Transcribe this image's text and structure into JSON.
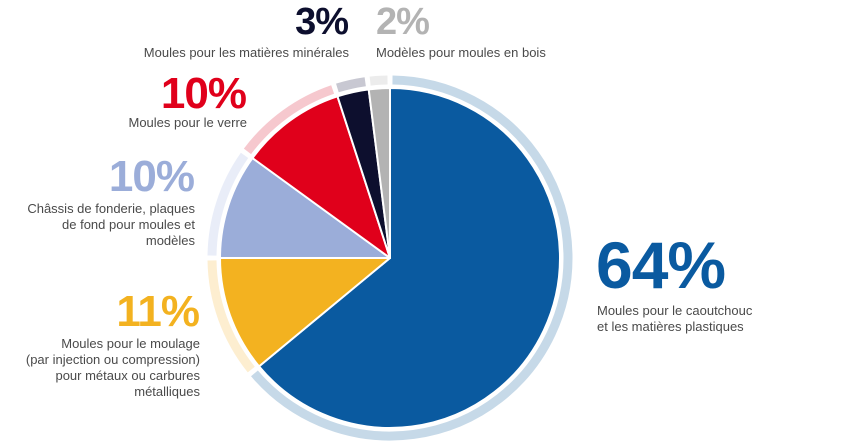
{
  "chart_data": {
    "type": "pie",
    "slices": [
      {
        "value": 64,
        "pct_label": "64%",
        "label_lines": [
          "Moules pour le caoutchouc",
          "et les matières plastiques"
        ],
        "color": "#0a5aa0",
        "ring_color": "#c6d9e8"
      },
      {
        "value": 11,
        "pct_label": "11%",
        "label_lines": [
          "Moules pour le moulage",
          "(par injection ou compression)",
          "pour métaux ou carbures",
          "métalliques"
        ],
        "color": "#f3b220",
        "ring_color": "#fdeed0"
      },
      {
        "value": 10,
        "pct_label": "10%",
        "label_lines": [
          "Châssis de fonderie, plaques",
          "de fond pour moules et",
          "modèles"
        ],
        "color": "#9badd9",
        "ring_color": "#e9edf8"
      },
      {
        "value": 10,
        "pct_label": "10%",
        "label_lines": [
          "Moules pour le verre"
        ],
        "color": "#e0001b",
        "ring_color": "#f6c8ce"
      },
      {
        "value": 3,
        "pct_label": "3%",
        "label_lines": [
          "Moules pour les matières minérales"
        ],
        "color": "#0d0f2e",
        "ring_color": "#c8c8d2"
      },
      {
        "value": 2,
        "pct_label": "2%",
        "label_lines": [
          "Modèles pour moules en bois"
        ],
        "color": "#b3b3b3",
        "ring_color": "#ececec"
      }
    ]
  }
}
